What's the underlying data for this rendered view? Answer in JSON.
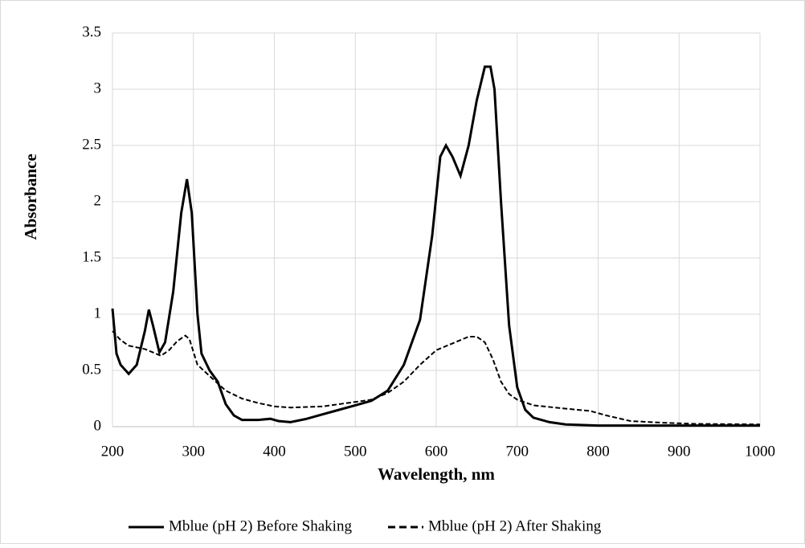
{
  "chart_data": {
    "type": "line",
    "xlabel": "Wavelength, nm",
    "ylabel": "Absorbance",
    "xlim": [
      200,
      1000
    ],
    "xticks": [
      200,
      300,
      400,
      500,
      600,
      700,
      800,
      900,
      1000
    ],
    "ylim": [
      0,
      3.5
    ],
    "yticks": [
      0,
      0.5,
      1,
      1.5,
      2,
      2.5,
      3,
      3.5
    ],
    "grid": true,
    "legend": "bottom",
    "series": [
      {
        "name": "Mblue (pH 2) Before Shaking",
        "color": "#000000",
        "dash": false,
        "x": [
          200,
          205,
          210,
          220,
          230,
          240,
          245,
          250,
          258,
          265,
          275,
          285,
          292,
          298,
          305,
          310,
          320,
          330,
          340,
          350,
          360,
          380,
          395,
          405,
          420,
          440,
          460,
          480,
          500,
          520,
          540,
          560,
          580,
          595,
          605,
          612,
          620,
          630,
          640,
          650,
          660,
          667,
          672,
          680,
          690,
          700,
          710,
          720,
          740,
          760,
          800,
          900,
          1000
        ],
        "values": [
          1.05,
          0.65,
          0.55,
          0.47,
          0.55,
          0.85,
          1.04,
          0.9,
          0.66,
          0.75,
          1.2,
          1.9,
          2.2,
          1.9,
          1.0,
          0.65,
          0.5,
          0.4,
          0.2,
          0.1,
          0.06,
          0.06,
          0.07,
          0.05,
          0.04,
          0.07,
          0.11,
          0.15,
          0.19,
          0.23,
          0.32,
          0.55,
          0.95,
          1.7,
          2.4,
          2.5,
          2.4,
          2.23,
          2.5,
          2.9,
          3.2,
          3.2,
          3.0,
          2.0,
          0.9,
          0.35,
          0.15,
          0.08,
          0.04,
          0.02,
          0.01,
          0.01,
          0.01
        ]
      },
      {
        "name": "Mblue (pH 2) After Shaking",
        "color": "#000000",
        "dash": true,
        "x": [
          200,
          210,
          220,
          240,
          250,
          260,
          270,
          280,
          290,
          295,
          305,
          320,
          340,
          360,
          380,
          400,
          420,
          460,
          500,
          520,
          540,
          560,
          580,
          600,
          620,
          640,
          650,
          660,
          670,
          680,
          690,
          700,
          720,
          760,
          790,
          810,
          840,
          880,
          920,
          1000
        ],
        "values": [
          0.85,
          0.77,
          0.72,
          0.69,
          0.66,
          0.63,
          0.68,
          0.76,
          0.81,
          0.78,
          0.55,
          0.45,
          0.32,
          0.25,
          0.21,
          0.18,
          0.17,
          0.18,
          0.22,
          0.24,
          0.3,
          0.4,
          0.55,
          0.68,
          0.74,
          0.8,
          0.8,
          0.75,
          0.6,
          0.4,
          0.29,
          0.24,
          0.19,
          0.16,
          0.14,
          0.1,
          0.05,
          0.035,
          0.025,
          0.02
        ]
      }
    ]
  }
}
